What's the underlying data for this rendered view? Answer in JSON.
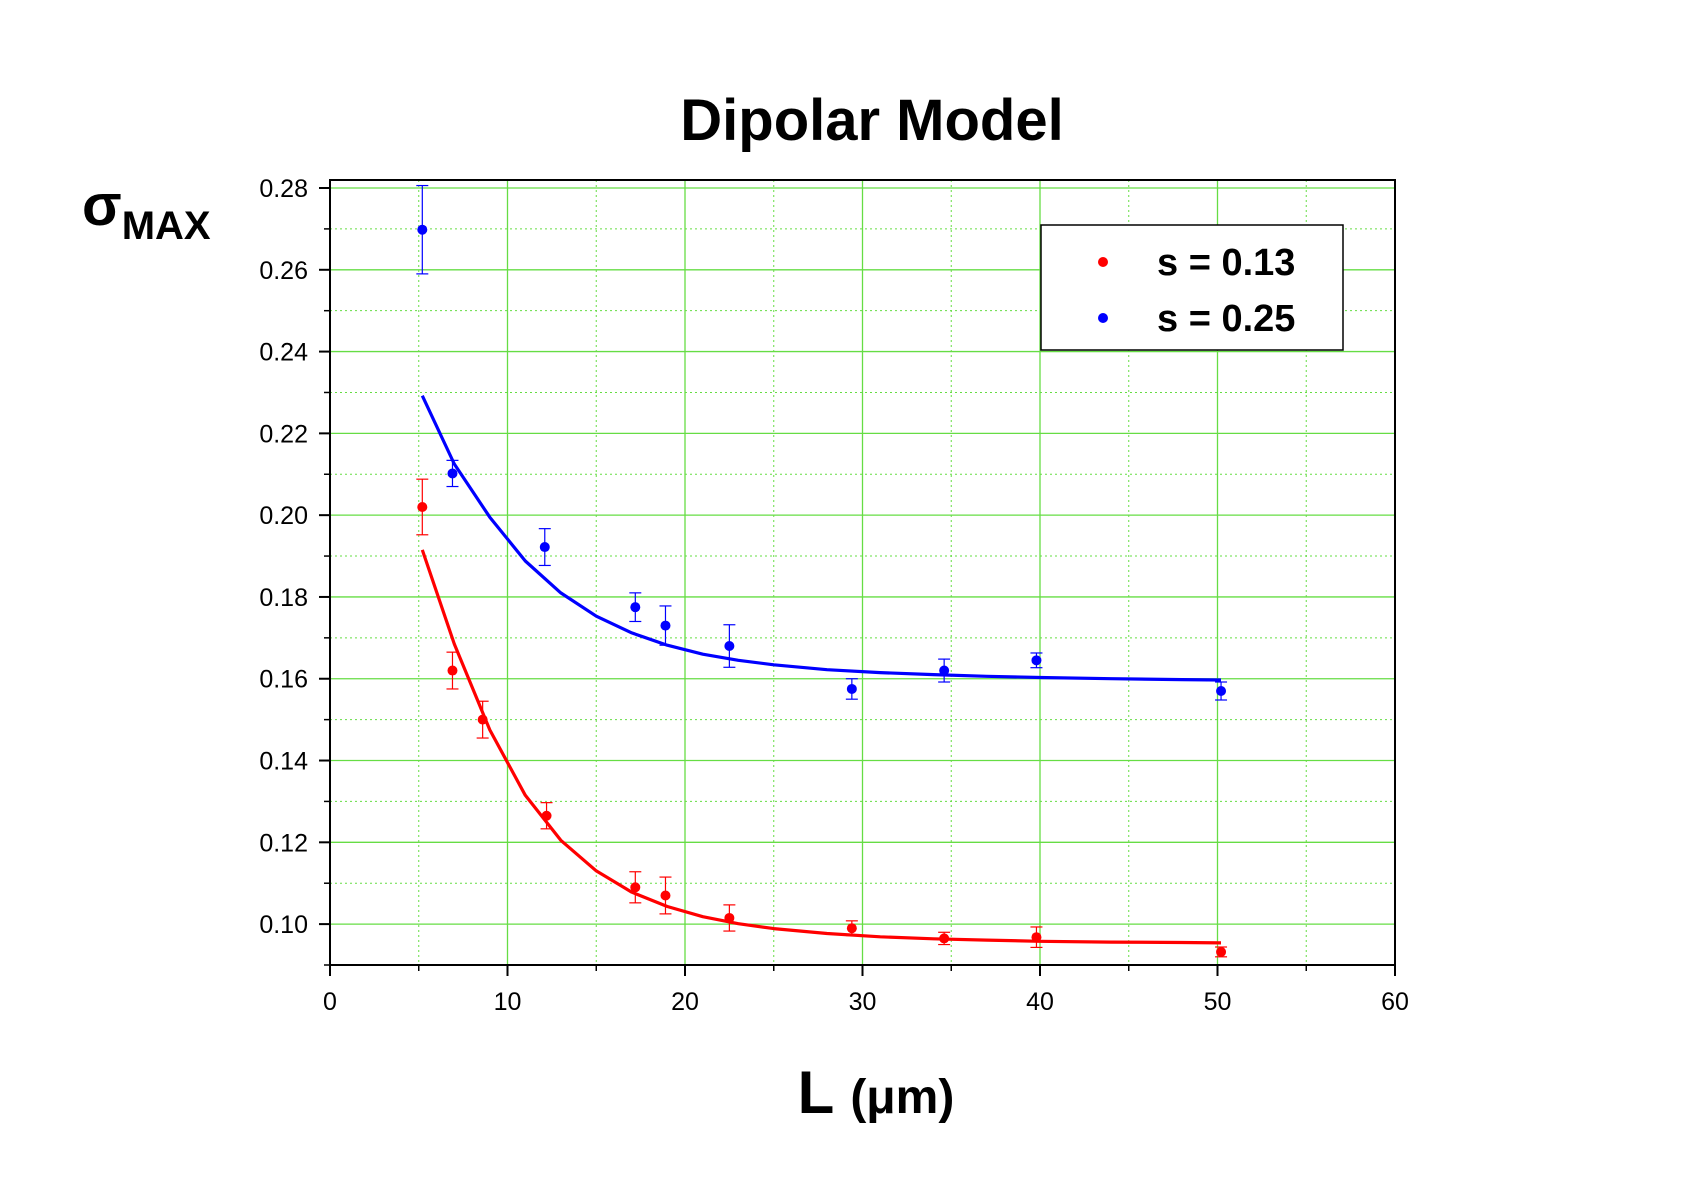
{
  "chart_data": {
    "type": "scatter",
    "title": "Dipolar Model",
    "xlabel": {
      "main": "L",
      "unit": "(μm)"
    },
    "ylabel": {
      "main": "σ",
      "sub": "MAX"
    },
    "xlim": [
      0,
      60
    ],
    "ylim": [
      0.09,
      0.28
    ],
    "x_ticks": [
      0,
      10,
      20,
      30,
      40,
      50,
      60
    ],
    "y_ticks": [
      0.1,
      0.12,
      0.14,
      0.16,
      0.18,
      0.2,
      0.22,
      0.24,
      0.26,
      0.28
    ],
    "x_tick_labels": [
      "0",
      "10",
      "20",
      "30",
      "40",
      "50",
      "60"
    ],
    "y_tick_labels": [
      "0.10",
      "0.12",
      "0.14",
      "0.16",
      "0.18",
      "0.20",
      "0.22",
      "0.24",
      "0.26",
      "0.28"
    ],
    "grid": true,
    "grid_color": "#66dd44",
    "legend_position": "top-right",
    "series": [
      {
        "name": "s = 0.13",
        "color": "#ff0000",
        "points": [
          {
            "x": 5.2,
            "y": 0.202,
            "err": 0.0068
          },
          {
            "x": 6.9,
            "y": 0.162,
            "err": 0.0045
          },
          {
            "x": 8.6,
            "y": 0.15,
            "err": 0.0045
          },
          {
            "x": 12.2,
            "y": 0.1265,
            "err": 0.0032
          },
          {
            "x": 17.2,
            "y": 0.109,
            "err": 0.0038
          },
          {
            "x": 18.9,
            "y": 0.107,
            "err": 0.0045
          },
          {
            "x": 22.5,
            "y": 0.1015,
            "err": 0.0032
          },
          {
            "x": 29.4,
            "y": 0.099,
            "err": 0.0018
          },
          {
            "x": 34.6,
            "y": 0.0965,
            "err": 0.0015
          },
          {
            "x": 39.8,
            "y": 0.0968,
            "err": 0.0025
          },
          {
            "x": 50.2,
            "y": 0.0932,
            "err": 0.0012
          }
        ],
        "fit": {
          "x": [
            5.2,
            7,
            9,
            11,
            13,
            15,
            17,
            19,
            21,
            23,
            25,
            28,
            31,
            34,
            37,
            40,
            44,
            48,
            50.2
          ],
          "y": [
            0.1915,
            0.1685,
            0.1475,
            0.1315,
            0.1205,
            0.113,
            0.1078,
            0.1043,
            0.1018,
            0.1001,
            0.0989,
            0.0977,
            0.0969,
            0.0964,
            0.0961,
            0.0958,
            0.0956,
            0.0955,
            0.0954
          ]
        }
      },
      {
        "name": "s = 0.25",
        "color": "#0000ff",
        "points": [
          {
            "x": 5.2,
            "y": 0.2698,
            "err": 0.0108
          },
          {
            "x": 6.9,
            "y": 0.2102,
            "err": 0.0032
          },
          {
            "x": 12.1,
            "y": 0.1922,
            "err": 0.0045
          },
          {
            "x": 17.2,
            "y": 0.1775,
            "err": 0.0035
          },
          {
            "x": 18.9,
            "y": 0.173,
            "err": 0.0048
          },
          {
            "x": 22.5,
            "y": 0.168,
            "err": 0.0052
          },
          {
            "x": 29.4,
            "y": 0.1575,
            "err": 0.0025
          },
          {
            "x": 34.6,
            "y": 0.162,
            "err": 0.0028
          },
          {
            "x": 39.8,
            "y": 0.1645,
            "err": 0.0018
          },
          {
            "x": 50.2,
            "y": 0.157,
            "err": 0.0022
          }
        ],
        "fit": {
          "x": [
            5.2,
            7,
            9,
            11,
            13,
            15,
            17,
            19,
            21,
            23,
            25,
            28,
            31,
            34,
            37,
            40,
            44,
            48,
            50.2
          ],
          "y": [
            0.2292,
            0.2125,
            0.1995,
            0.1888,
            0.181,
            0.1753,
            0.1712,
            0.1682,
            0.166,
            0.1645,
            0.1634,
            0.1622,
            0.1615,
            0.161,
            0.1606,
            0.1603,
            0.16,
            0.1598,
            0.1597
          ]
        }
      }
    ]
  }
}
